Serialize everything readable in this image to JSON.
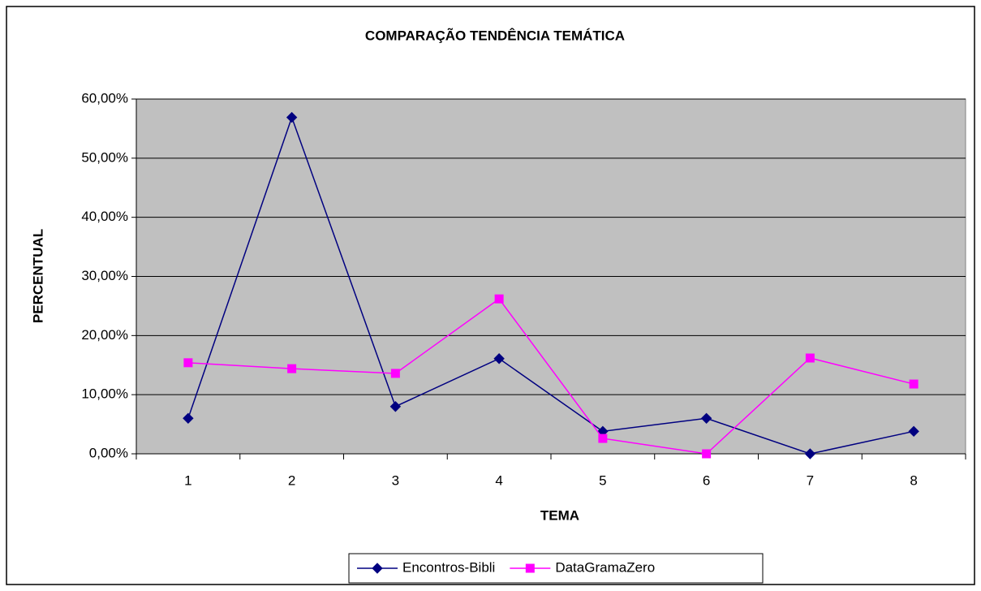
{
  "chart_data": {
    "type": "line",
    "title": "COMPARAÇÃO TENDÊNCIA TEMÁTICA",
    "x_label": "TEMA",
    "y_label": "PERCENTUAL",
    "categories": [
      "1",
      "2",
      "3",
      "4",
      "5",
      "6",
      "7",
      "8"
    ],
    "series": [
      {
        "name": "Encontros-Bibli",
        "color": "#000080",
        "marker": "diamond",
        "values": [
          6.0,
          56.9,
          8.0,
          16.1,
          3.8,
          6.0,
          0,
          3.8
        ]
      },
      {
        "name": "DataGramaZero",
        "color": "#ff00ff",
        "marker": "square",
        "values": [
          15.4,
          14.4,
          13.6,
          26.2,
          2.6,
          0,
          16.2,
          11.8
        ]
      }
    ],
    "ylim": [
      0,
      60
    ],
    "yticks": [
      {
        "value": 0,
        "label": "0,00%"
      },
      {
        "value": 10,
        "label": "10,00%"
      },
      {
        "value": 20,
        "label": "20,00%"
      },
      {
        "value": 30,
        "label": "30,00%"
      },
      {
        "value": 40,
        "label": "40,00%"
      },
      {
        "value": 50,
        "label": "50,00%"
      },
      {
        "value": 60,
        "label": "60,00%"
      }
    ],
    "grid": true,
    "plot_background": "#c0c0c0",
    "legend": "bottom"
  }
}
